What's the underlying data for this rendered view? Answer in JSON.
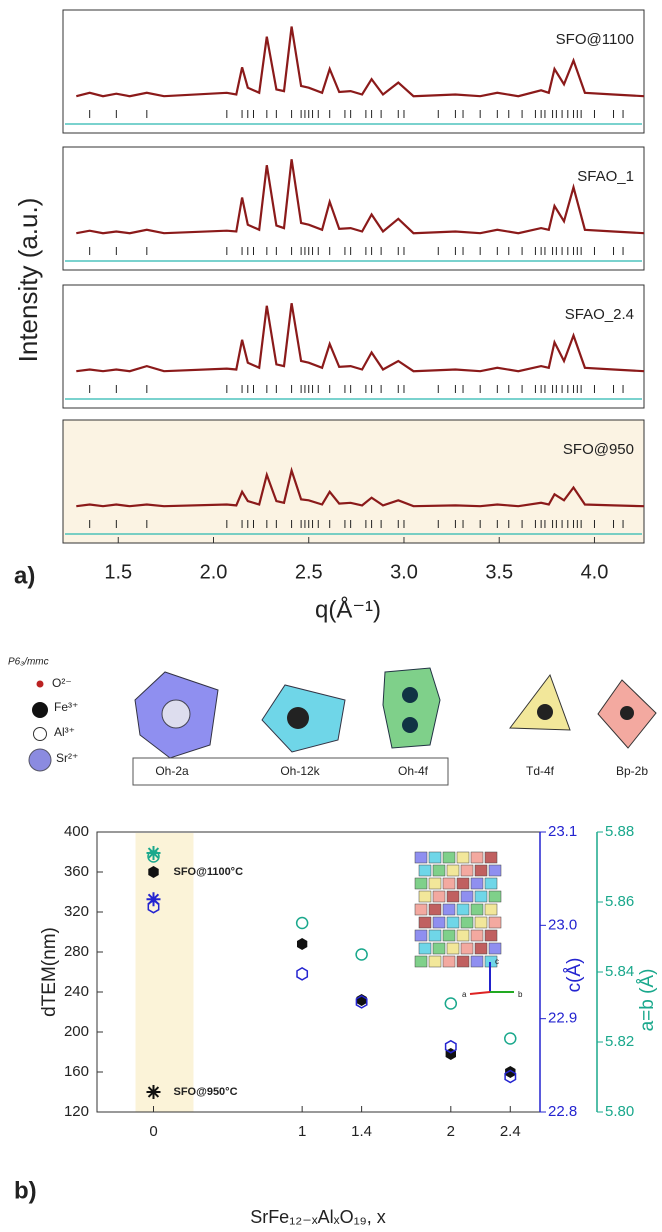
{
  "chart_data": [
    {
      "type": "line",
      "panel_label": "a)",
      "xlabel": "q(Å⁻¹)",
      "ylabel": "Intensity (a.u.)",
      "xlim": [
        1.21,
        4.26
      ],
      "xticks": [
        1.5,
        {
          "value": 2,
          "label": "2.0"
        },
        2.5,
        {
          "value": 3,
          "label": "3.0"
        },
        3.5,
        {
          "value": 4,
          "label": "4.0"
        }
      ],
      "ylim": [
        0,
        1
      ],
      "color": "#8b1a1a",
      "x": [
        1.28,
        1.35,
        1.42,
        1.49,
        1.56,
        1.65,
        1.74,
        2.07,
        2.12,
        2.15,
        2.18,
        2.24,
        2.28,
        2.33,
        2.37,
        2.41,
        2.46,
        2.5,
        2.57,
        2.61,
        2.66,
        2.72,
        2.78,
        2.83,
        2.89,
        2.97,
        3.05,
        3.27,
        3.4,
        3.49,
        3.6,
        3.72,
        3.76,
        3.79,
        3.84,
        3.89,
        3.95,
        4.1,
        4.26
      ],
      "reflections": [
        1.35,
        1.49,
        1.65,
        2.07,
        2.15,
        2.18,
        2.21,
        2.28,
        2.33,
        2.41,
        2.46,
        2.48,
        2.5,
        2.52,
        2.55,
        2.61,
        2.69,
        2.72,
        2.8,
        2.83,
        2.88,
        2.97,
        3.0,
        3.18,
        3.27,
        3.31,
        3.4,
        3.49,
        3.55,
        3.62,
        3.69,
        3.72,
        3.74,
        3.78,
        3.8,
        3.83,
        3.86,
        3.89,
        3.91,
        3.93,
        4.0,
        4.1,
        4.15
      ],
      "series": [
        {
          "name": "SFO@1100",
          "values": [
            0.08,
            0.12,
            0.08,
            0.11,
            0.08,
            0.12,
            0.08,
            0.12,
            0.1,
            0.42,
            0.18,
            0.12,
            0.78,
            0.16,
            0.14,
            0.9,
            0.2,
            0.18,
            0.12,
            0.4,
            0.13,
            0.14,
            0.1,
            0.28,
            0.1,
            0.24,
            0.08,
            0.1,
            0.08,
            0.12,
            0.08,
            0.15,
            0.12,
            0.4,
            0.22,
            0.5,
            0.12,
            0.1,
            0.08
          ]
        },
        {
          "name": "SFAO_1",
          "values": [
            0.08,
            0.11,
            0.08,
            0.1,
            0.08,
            0.12,
            0.08,
            0.11,
            0.1,
            0.5,
            0.18,
            0.12,
            0.88,
            0.17,
            0.14,
            0.95,
            0.2,
            0.18,
            0.12,
            0.45,
            0.13,
            0.14,
            0.1,
            0.3,
            0.1,
            0.25,
            0.08,
            0.1,
            0.08,
            0.12,
            0.08,
            0.14,
            0.12,
            0.4,
            0.22,
            0.62,
            0.12,
            0.1,
            0.08
          ]
        },
        {
          "name": "SFAO_2.4",
          "values": [
            0.08,
            0.1,
            0.08,
            0.1,
            0.08,
            0.14,
            0.08,
            0.11,
            0.1,
            0.45,
            0.18,
            0.12,
            0.85,
            0.16,
            0.14,
            0.88,
            0.2,
            0.18,
            0.12,
            0.4,
            0.13,
            0.14,
            0.1,
            0.3,
            0.1,
            0.2,
            0.08,
            0.1,
            0.08,
            0.12,
            0.08,
            0.14,
            0.12,
            0.42,
            0.2,
            0.5,
            0.12,
            0.1,
            0.08
          ]
        },
        {
          "name": "SFO@950",
          "values": [
            0.08,
            0.1,
            0.08,
            0.1,
            0.08,
            0.1,
            0.08,
            0.1,
            0.09,
            0.25,
            0.14,
            0.1,
            0.45,
            0.14,
            0.12,
            0.5,
            0.16,
            0.15,
            0.1,
            0.25,
            0.11,
            0.12,
            0.09,
            0.18,
            0.09,
            0.15,
            0.08,
            0.09,
            0.08,
            0.1,
            0.08,
            0.12,
            0.1,
            0.22,
            0.15,
            0.3,
            0.1,
            0.09,
            0.08
          ]
        }
      ]
    },
    {
      "type": "scatter",
      "panel_label": "b)",
      "xlabel": "SrFe₁₂₋ₓAlₓO₁₉, x",
      "ylabel": "dTEM(nm)",
      "y2label": "c(Å)",
      "y3label": "a=b (Å)",
      "x": [
        0,
        1,
        1.4,
        2,
        2.4
      ],
      "xlim": [
        -0.38,
        2.6
      ],
      "xticks": [
        0,
        1,
        1.4,
        2,
        2.4
      ],
      "ylim": [
        120,
        400
      ],
      "yticks": [
        120,
        160,
        200,
        240,
        280,
        320,
        360,
        400
      ],
      "y2lim": [
        22.8,
        23.1
      ],
      "y2ticks": [
        22.8,
        22.9,
        {
          "value": 23,
          "label": "23.0"
        },
        23.1
      ],
      "y2color": "#2424d0",
      "y3lim": [
        5.8,
        5.88
      ],
      "y3ticks": [
        {
          "value": 5.8,
          "label": "5.80"
        },
        5.82,
        5.84,
        5.86,
        5.88
      ],
      "y3color": "#1aa88c",
      "annotations": [
        "SFO@1100°C",
        "SFO@950°C"
      ],
      "inset_axes": [
        "c",
        "a",
        "b"
      ],
      "series": [
        {
          "marker": "hexagon-filled",
          "color": "#111111",
          "values": [
            360,
            288,
            232,
            178,
            160
          ]
        },
        {
          "marker": "star",
          "color": "#111111",
          "x": [
            0
          ],
          "values": [
            140
          ]
        },
        {
          "marker": "hexagon-open",
          "color": "#2424d0",
          "axis": "y2",
          "values": [
            23.02,
            22.948,
            22.918,
            22.87,
            22.838
          ]
        },
        {
          "marker": "star",
          "color": "#2424d0",
          "axis": "y2",
          "x": [
            0
          ],
          "values": [
            23.028
          ]
        },
        {
          "marker": "circle-open",
          "color": "#1aa88c",
          "axis": "y3",
          "values": [
            5.873,
            5.854,
            5.845,
            5.831,
            5.821
          ]
        },
        {
          "marker": "star",
          "color": "#1aa88c",
          "axis": "y3",
          "x": [
            0
          ],
          "values": [
            5.874
          ]
        }
      ]
    }
  ],
  "structure": {
    "space_group": "P6₃/mmc",
    "legend": [
      "O²⁻",
      "Fe³⁺",
      "Al³⁺",
      "Sr²⁺"
    ],
    "sites": [
      "Oh-2a",
      "Oh-12k",
      "Oh-4f",
      "Td-4f",
      "Bp-2b"
    ]
  }
}
